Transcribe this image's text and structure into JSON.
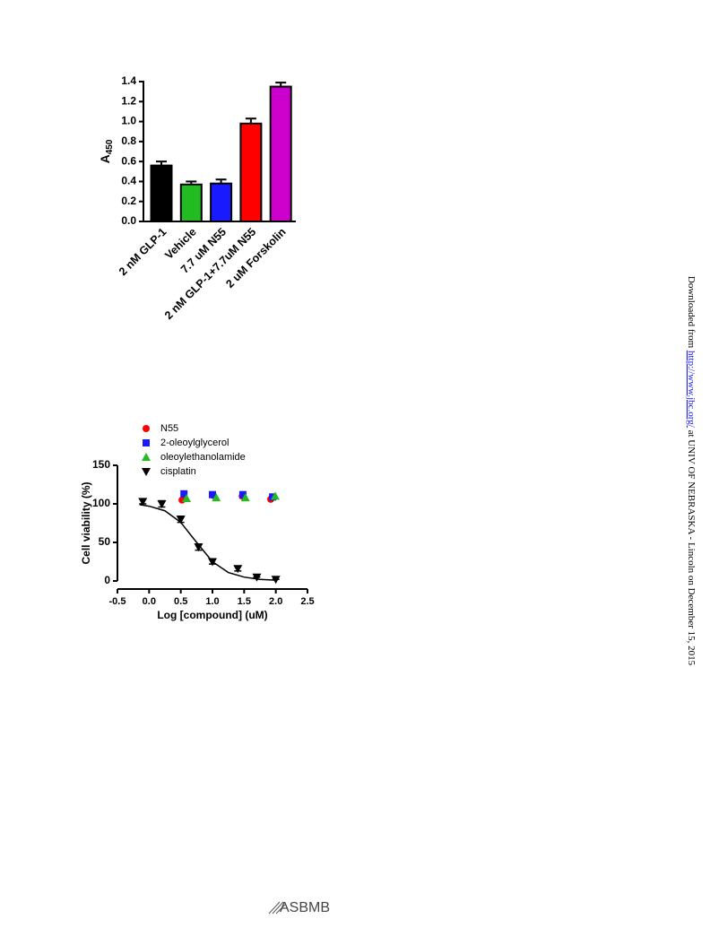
{
  "chart_data": [
    {
      "type": "bar",
      "y_label": "A",
      "y_label_sub": "450",
      "categories": [
        "2 nM GLP-1",
        "Vehicle",
        "7.7 uM N55",
        "2 nM GLP-1+7.7uM N55",
        "2 uM Forskolin"
      ],
      "values": [
        0.56,
        0.37,
        0.38,
        0.98,
        1.35
      ],
      "errors": [
        0.04,
        0.03,
        0.04,
        0.05,
        0.04
      ],
      "colors": [
        "#000000",
        "#22bb22",
        "#1a1aff",
        "#ff0000",
        "#cc00cc"
      ],
      "ylim": [
        0,
        1.4
      ],
      "yticks": [
        {
          "value": 0,
          "label": "0.0"
        },
        0.2,
        0.4,
        0.6,
        0.8,
        {
          "value": 1,
          "label": "1.0"
        },
        1.2,
        1.4
      ]
    },
    {
      "type": "scatter",
      "x_label": "Log [compound] (uM)",
      "y_label": "Cell viability (%)",
      "series": [
        {
          "name": "N55",
          "color": "#ff0000",
          "marker": "circle",
          "x": [
            0.52,
            1.01,
            1.47,
            1.92
          ],
          "values": [
            105,
            111,
            110,
            106
          ]
        },
        {
          "name": "2-oleoylglycerol",
          "color": "#1a1aff",
          "marker": "square",
          "x": [
            0.55,
            1.0,
            1.48,
            1.95
          ],
          "values": [
            113,
            112,
            112,
            109
          ]
        },
        {
          "name": "oleoylethanolamide",
          "color": "#22bb22",
          "marker": "triangle-up",
          "x": [
            0.59,
            1.06,
            1.52,
            1.99
          ],
          "values": [
            107,
            108,
            108,
            110
          ]
        },
        {
          "name": "cisplatin",
          "color": "#000000",
          "marker": "triangle-down",
          "x": [
            -0.1,
            0.2,
            0.5,
            0.78,
            1.0,
            1.4,
            1.7,
            2.0
          ],
          "values": [
            103,
            100,
            80,
            44,
            25,
            16,
            5,
            2
          ],
          "errors": [
            3,
            4,
            4,
            4,
            3,
            3,
            0,
            0
          ]
        }
      ],
      "fit": {
        "x": [
          -0.15,
          0,
          0.25,
          0.5,
          0.75,
          1,
          1.25,
          1.5,
          1.75,
          2.0
        ],
        "y": [
          99,
          97,
          91,
          76,
          50,
          25,
          11,
          5,
          2,
          1
        ]
      },
      "xlim": [
        -0.5,
        2.5
      ],
      "xticks": [
        -0.5,
        {
          "value": 0,
          "label": "0.0"
        },
        0.5,
        {
          "value": 1,
          "label": "1.0"
        },
        1.5,
        {
          "value": 2,
          "label": "2.0"
        },
        2.5
      ],
      "ylim": [
        0,
        150
      ],
      "yticks": [
        0,
        50,
        100,
        150
      ]
    }
  ],
  "sidebar": {
    "prefix": "Downloaded from ",
    "link": "http://www.jbc.org/",
    "suffix": " at UNIV OF NEBRASKA - Lincoln on December 15, 2015"
  },
  "footer": {
    "logo": "ASBMB"
  }
}
